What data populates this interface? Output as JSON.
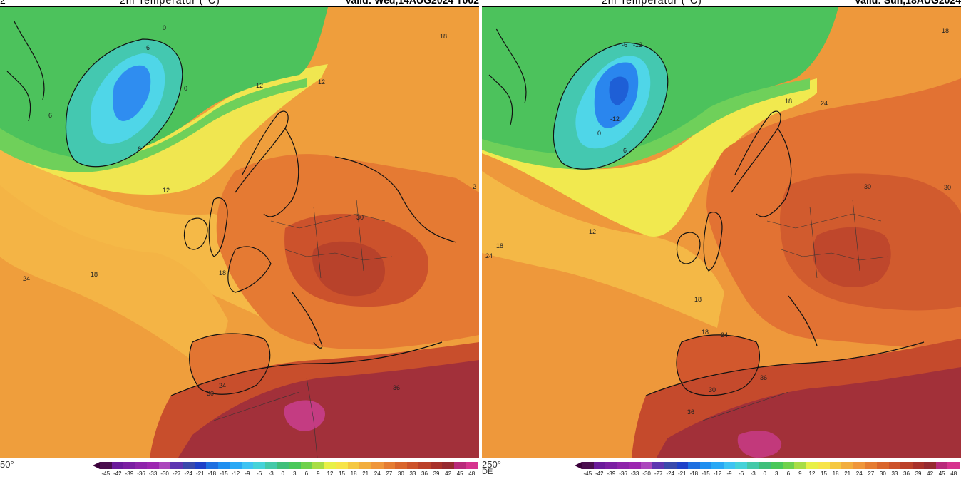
{
  "panels": [
    {
      "header_left": "2",
      "title": "2m Temperatur (°C)",
      "valid": "Valid: Wed,14AUG2024 T002",
      "corner_label": "50°",
      "corner_label2": "",
      "contour_labels": [
        "0",
        "-6",
        "0",
        "6",
        "6",
        "-12",
        "12",
        "12",
        "18",
        "24",
        "18",
        "30",
        "30",
        "24",
        "36",
        "18",
        "2"
      ]
    },
    {
      "header_left": "",
      "title": "2m Temperatur (°C)",
      "valid": "Valid: Sun,18AUG2024",
      "corner_label": "250°",
      "corner_label2": "DE",
      "contour_labels": [
        "-12",
        "-6",
        "-12",
        "0",
        "6",
        "18",
        "24",
        "18",
        "24",
        "12",
        "18",
        "18",
        "24",
        "30",
        "30",
        "36",
        "30",
        "36",
        "18"
      ]
    }
  ],
  "colorbar": {
    "ticks": [
      "-45",
      "-42",
      "-39",
      "-36",
      "-33",
      "-30",
      "-27",
      "-24",
      "-21",
      "-18",
      "-15",
      "-12",
      "-9",
      "-6",
      "-3",
      "0",
      "3",
      "6",
      "9",
      "12",
      "15",
      "18",
      "21",
      "24",
      "27",
      "30",
      "33",
      "36",
      "39",
      "42",
      "45",
      "48"
    ],
    "colors": [
      "#4a0e4e",
      "#6a1b9a",
      "#7b1fa2",
      "#8e24aa",
      "#9c27b0",
      "#ab47bc",
      "#5e35b1",
      "#3949ab",
      "#1e40c8",
      "#1e6fe0",
      "#1f8ff0",
      "#29a8f5",
      "#3ec3f2",
      "#45d2d8",
      "#44c9a8",
      "#3fbf7a",
      "#49c85a",
      "#6fd14c",
      "#a8dd45",
      "#e8f048",
      "#f7e44a",
      "#f5c842",
      "#f2ad3e",
      "#ef963b",
      "#e57c32",
      "#d9652c",
      "#cc522a",
      "#bb4029",
      "#a8302a",
      "#962930",
      "#b8297a",
      "#d6338f"
    ]
  },
  "map_colors": {
    "ocean_warm": "#f0a03c",
    "ocean_mid": "#f6c048",
    "ocean_cool": "#f2ea52",
    "green_cool": "#5fcc5e",
    "green_mid": "#48c25a",
    "cold_teal": "#45c9b4",
    "cold_cyan": "#4ed6e6",
    "cold_blue": "#2f8ff0",
    "cold_deep": "#1e5fd6",
    "land_warm": "#e27634",
    "land_hot": "#d15a2e",
    "land_very_hot": "#b8412b",
    "sahara": "#9e2a33",
    "sahara_peak": "#c83c8a"
  }
}
